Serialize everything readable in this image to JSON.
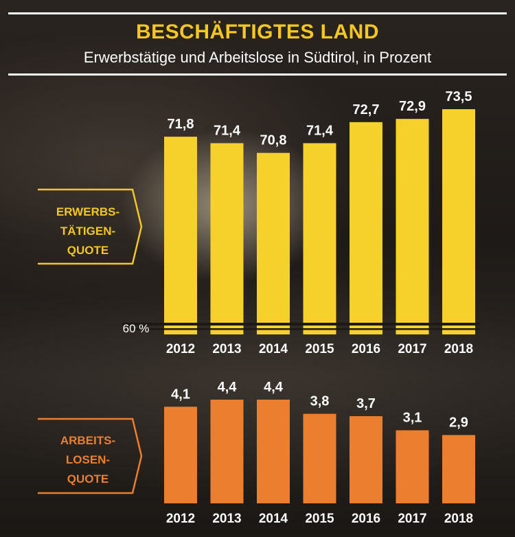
{
  "title": "BESCHÄFTIGTES LAND",
  "subtitle": "Erwerbstätige und Arbeitslose in Südtirol, in Prozent",
  "colors": {
    "title": "#f6c722",
    "employment": "#f6d02b",
    "unemployment": "#ec7f2f",
    "employment_label": "#f6c722",
    "unemployment_label": "#ec7f2f"
  },
  "chart_data": [
    {
      "type": "bar",
      "categories": [
        "2012",
        "2013",
        "2014",
        "2015",
        "2016",
        "2017",
        "2018"
      ],
      "values": [
        71.8,
        71.4,
        70.8,
        71.4,
        72.7,
        72.9,
        73.5
      ],
      "value_labels": [
        "71,8",
        "71,4",
        "70,8",
        "71,4",
        "72,7",
        "72,9",
        "73,5"
      ],
      "series_label_lines": [
        "ERWERBS-",
        "TÄTIGEN-",
        "QUOTE"
      ],
      "baseline_label": "60 %",
      "axis_break": true,
      "ylim": [
        60,
        74
      ]
    },
    {
      "type": "bar",
      "categories": [
        "2012",
        "2013",
        "2014",
        "2015",
        "2016",
        "2017",
        "2018"
      ],
      "values": [
        4.1,
        4.4,
        4.4,
        3.8,
        3.7,
        3.1,
        2.9
      ],
      "value_labels": [
        "4,1",
        "4,4",
        "4,4",
        "3,8",
        "3,7",
        "3,1",
        "2,9"
      ],
      "series_label_lines": [
        "ARBEITS-",
        "LOSEN-",
        "QUOTE"
      ],
      "ylim": [
        0,
        4.4
      ]
    }
  ]
}
